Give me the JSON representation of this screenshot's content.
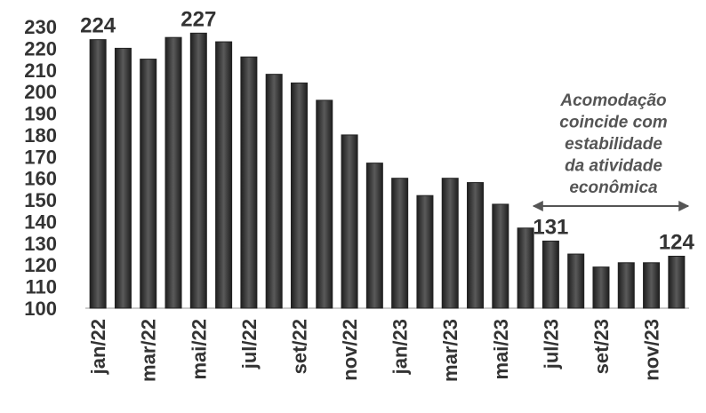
{
  "chart_data": {
    "type": "bar",
    "categories": [
      "jan/22",
      null,
      "mar/22",
      null,
      "mai/22",
      null,
      "jul/22",
      null,
      "set/22",
      null,
      "nov/22",
      null,
      "jan/23",
      null,
      "mar/23",
      null,
      "mai/23",
      null,
      "jul/23",
      null,
      "set/23",
      null,
      "nov/23",
      null
    ],
    "values": [
      224,
      220,
      215,
      225,
      227,
      223,
      216,
      208,
      204,
      196,
      180,
      167,
      160,
      152,
      160,
      158,
      148,
      137,
      131,
      125,
      119,
      121,
      121,
      124
    ],
    "value_labels": [
      "224",
      null,
      null,
      null,
      "227",
      null,
      null,
      null,
      null,
      null,
      null,
      null,
      null,
      null,
      null,
      null,
      null,
      null,
      "131",
      null,
      null,
      null,
      null,
      "124"
    ],
    "color": "#3a3a3a",
    "ylim": [
      100,
      230
    ],
    "yticks": [
      100,
      110,
      120,
      130,
      140,
      150,
      160,
      170,
      180,
      190,
      200,
      210,
      220,
      230
    ],
    "annotation": [
      "Acomodação",
      "coincide com",
      "estabilidade",
      "da atividade",
      "econômica"
    ]
  }
}
